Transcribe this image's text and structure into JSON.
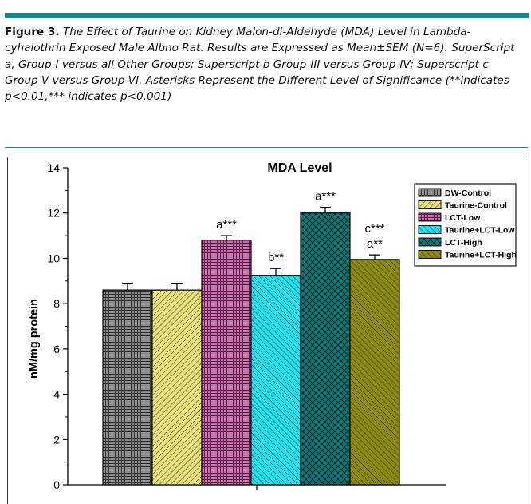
{
  "figure": {
    "label": "Figure 3.",
    "caption": " The Effect of Taurine on Kidney Malon-di-Aldehyde (MDA) Level in Lambda-cyhalothrin Exposed Male Albno Rat. Results are Expressed as Mean±SEM (N=6). SuperScript a, Group-I versus all Other Groups; Superscript b Group-III versus Group-IV; Superscript c Group-V versus Group-VI. Asterisks Represent the Different Level of Significance (**indicates p<0.01,*** indicates p<0.001)"
  },
  "chart_data": {
    "type": "bar",
    "title": "MDA Level",
    "xlabel": "",
    "ylabel": "nM/mg protein",
    "ylim": [
      0,
      14
    ],
    "yticks": [
      0,
      2,
      4,
      6,
      8,
      10,
      12,
      14
    ],
    "legend_position": "top-right",
    "grid": false,
    "series": [
      {
        "name": "DW-Control",
        "value": 8.6,
        "error": 0.3,
        "annotation": [],
        "color": "#8a8a8a",
        "pattern": "grid"
      },
      {
        "name": "Taurine-Control",
        "value": 8.6,
        "error": 0.3,
        "annotation": [],
        "color": "#e8e07a",
        "pattern": "diag-right"
      },
      {
        "name": "LCT-Low",
        "value": 10.8,
        "error": 0.2,
        "annotation": [
          "a***"
        ],
        "color": "#e060b8",
        "pattern": "grid"
      },
      {
        "name": "Taurine+LCT-Low",
        "value": 9.25,
        "error": 0.3,
        "annotation": [
          "b**"
        ],
        "color": "#22e0ee",
        "pattern": "diag-left"
      },
      {
        "name": "LCT-High",
        "value": 12.0,
        "error": 0.25,
        "annotation": [
          "a***"
        ],
        "color": "#0a7a7a",
        "pattern": "cross"
      },
      {
        "name": "Taurine+LCT-High",
        "value": 9.95,
        "error": 0.2,
        "annotation": [
          "c***",
          "a**"
        ],
        "color": "#8a8a10",
        "pattern": "diag-left"
      }
    ]
  }
}
